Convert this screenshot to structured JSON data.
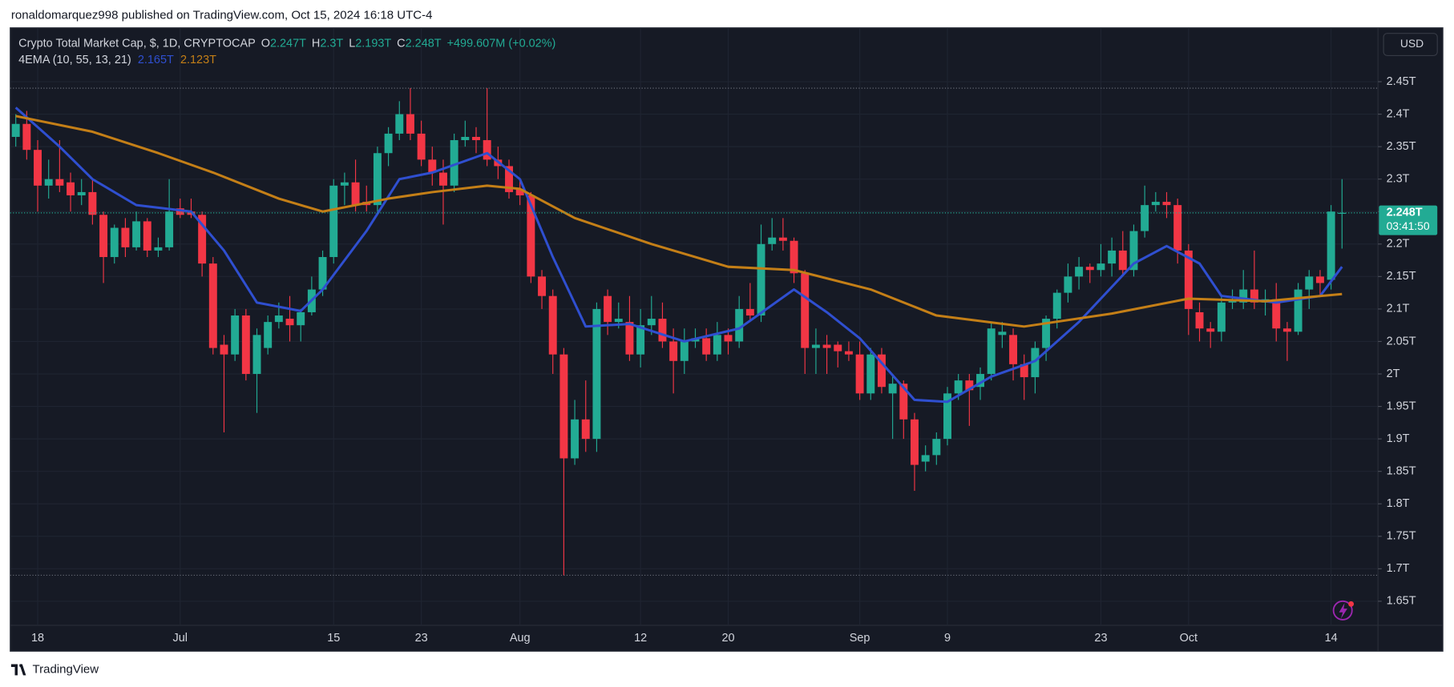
{
  "header": {
    "text": "ronaldomarquez998 published on TradingView.com, Oct 15, 2024 16:18 UTC-4"
  },
  "chart_data": {
    "type": "candlestick",
    "title": "Crypto Total Market Cap, $, 1D, CRYPTOCAP",
    "ohlc_legend": [
      {
        "key": "O",
        "label": "2.247T"
      },
      {
        "key": "H",
        "label": "2.3T"
      },
      {
        "key": "L",
        "label": "2.193T"
      },
      {
        "key": "C",
        "label": "2.248T"
      }
    ],
    "change": "+499.607M (+0.02%)",
    "indicator": {
      "name": "4EMA (10, 55, 13, 21)",
      "values": [
        {
          "value": 2.165,
          "label": "2.165T"
        },
        {
          "value": 2.123,
          "label": "2.123T"
        }
      ]
    },
    "currency": "USD",
    "categories": [
      "Jun 16",
      "Jun 17",
      "Jun 18",
      "Jun 19",
      "Jun 20",
      "Jun 21",
      "Jun 22",
      "Jun 23",
      "Jun 24",
      "Jun 25",
      "Jun 26",
      "Jun 27",
      "Jun 28",
      "Jun 29",
      "Jun 30",
      "Jul 1",
      "Jul 2",
      "Jul 3",
      "Jul 4",
      "Jul 5",
      "Jul 6",
      "Jul 7",
      "Jul 8",
      "Jul 9",
      "Jul 10",
      "Jul 11",
      "Jul 12",
      "Jul 13",
      "Jul 14",
      "Jul 15",
      "Jul 16",
      "Jul 17",
      "Jul 18",
      "Jul 19",
      "Jul 20",
      "Jul 21",
      "Jul 22",
      "Jul 23",
      "Jul 24",
      "Jul 25",
      "Jul 26",
      "Jul 27",
      "Jul 28",
      "Jul 29",
      "Jul 30",
      "Jul 31",
      "Aug 1",
      "Aug 2",
      "Aug 3",
      "Aug 4",
      "Aug 5",
      "Aug 6",
      "Aug 7",
      "Aug 8",
      "Aug 9",
      "Aug 10",
      "Aug 11",
      "Aug 12",
      "Aug 13",
      "Aug 14",
      "Aug 15",
      "Aug 16",
      "Aug 17",
      "Aug 18",
      "Aug 19",
      "Aug 20",
      "Aug 21",
      "Aug 22",
      "Aug 23",
      "Aug 24",
      "Aug 25",
      "Aug 26",
      "Aug 27",
      "Aug 28",
      "Aug 29",
      "Aug 30",
      "Aug 31",
      "Sep 1",
      "Sep 2",
      "Sep 3",
      "Sep 4",
      "Sep 5",
      "Sep 6",
      "Sep 7",
      "Sep 8",
      "Sep 9",
      "Sep 10",
      "Sep 11",
      "Sep 12",
      "Sep 13",
      "Sep 14",
      "Sep 15",
      "Sep 16",
      "Sep 17",
      "Sep 18",
      "Sep 19",
      "Sep 20",
      "Sep 21",
      "Sep 22",
      "Sep 23",
      "Sep 24",
      "Sep 25",
      "Sep 26",
      "Sep 27",
      "Sep 28",
      "Sep 29",
      "Sep 30",
      "Oct 1",
      "Oct 2",
      "Oct 3",
      "Oct 4",
      "Oct 5",
      "Oct 6",
      "Oct 7",
      "Oct 8",
      "Oct 9",
      "Oct 10",
      "Oct 11",
      "Oct 12",
      "Oct 13",
      "Oct 14",
      "Oct 15"
    ],
    "open": [
      2.365,
      2.385,
      2.345,
      2.29,
      2.3,
      2.295,
      2.275,
      2.28,
      2.245,
      2.18,
      2.225,
      2.195,
      2.235,
      2.19,
      2.195,
      2.255,
      2.25,
      2.245,
      2.17,
      2.045,
      2.03,
      2.09,
      2.0,
      2.04,
      2.08,
      2.085,
      2.075,
      2.095,
      2.13,
      2.18,
      2.29,
      2.295,
      2.265,
      2.26,
      2.34,
      2.37,
      2.4,
      2.37,
      2.33,
      2.31,
      2.29,
      2.36,
      2.365,
      2.36,
      2.33,
      2.32,
      2.285,
      2.275,
      2.15,
      2.12,
      2.03,
      1.87,
      1.93,
      1.9,
      2.12,
      2.08,
      2.08,
      2.03,
      2.075,
      2.085,
      2.05,
      2.02,
      2.05,
      2.055,
      2.03,
      2.06,
      2.05,
      2.1,
      2.09,
      2.2,
      2.21,
      2.205,
      2.155,
      2.04,
      2.045,
      2.045,
      2.035,
      2.03,
      1.97,
      2.03,
      1.97,
      1.985,
      1.93,
      1.865,
      1.875,
      1.9,
      1.97,
      1.99,
      1.98,
      2.0,
      2.06,
      2.06,
      2.015,
      1.995,
      2.04,
      2.085,
      2.125,
      2.15,
      2.165,
      2.16,
      2.17,
      2.19,
      2.16,
      2.22,
      2.26,
      2.265,
      2.26,
      2.19,
      2.095,
      2.07,
      2.065,
      2.11,
      2.11,
      2.13,
      2.11,
      2.115,
      2.07,
      2.065,
      2.13,
      2.15,
      2.145,
      2.247
    ],
    "high": [
      2.4,
      2.405,
      2.36,
      2.33,
      2.36,
      2.31,
      2.3,
      2.3,
      2.25,
      2.23,
      2.24,
      2.25,
      2.24,
      2.21,
      2.3,
      2.27,
      2.27,
      2.25,
      2.18,
      2.06,
      2.1,
      2.1,
      2.07,
      2.09,
      2.11,
      2.12,
      2.1,
      2.15,
      2.19,
      2.3,
      2.31,
      2.33,
      2.29,
      2.35,
      2.38,
      2.42,
      2.44,
      2.39,
      2.35,
      2.33,
      2.37,
      2.39,
      2.38,
      2.44,
      2.35,
      2.33,
      2.3,
      2.28,
      2.16,
      2.13,
      2.04,
      1.96,
      1.99,
      2.11,
      2.13,
      2.11,
      2.12,
      2.1,
      2.12,
      2.11,
      2.07,
      2.07,
      2.07,
      2.07,
      2.08,
      2.07,
      2.12,
      2.14,
      2.23,
      2.24,
      2.24,
      2.21,
      2.16,
      2.07,
      2.06,
      2.05,
      2.05,
      2.05,
      2.04,
      2.04,
      2.0,
      1.99,
      1.94,
      1.89,
      1.91,
      1.98,
      2.0,
      2.0,
      2.01,
      2.08,
      2.08,
      2.07,
      2.03,
      2.05,
      2.09,
      2.13,
      2.17,
      2.18,
      2.17,
      2.2,
      2.21,
      2.22,
      2.23,
      2.29,
      2.28,
      2.28,
      2.27,
      2.2,
      2.11,
      2.08,
      2.12,
      2.13,
      2.16,
      2.19,
      2.13,
      2.14,
      2.08,
      2.14,
      2.16,
      2.16,
      2.26,
      2.3
    ],
    "low": [
      2.35,
      2.33,
      2.25,
      2.27,
      2.28,
      2.25,
      2.26,
      2.23,
      2.14,
      2.17,
      2.18,
      2.19,
      2.18,
      2.18,
      2.19,
      2.24,
      2.24,
      2.15,
      2.03,
      1.91,
      2.02,
      1.99,
      1.94,
      2.03,
      2.07,
      2.05,
      2.05,
      2.09,
      2.12,
      2.17,
      2.26,
      2.25,
      2.25,
      2.25,
      2.32,
      2.36,
      2.36,
      2.32,
      2.29,
      2.23,
      2.28,
      2.35,
      2.34,
      2.32,
      2.3,
      2.27,
      2.26,
      2.14,
      2.1,
      2.0,
      1.69,
      1.86,
      1.88,
      1.88,
      2.06,
      2.07,
      2.02,
      2.01,
      2.06,
      2.04,
      1.97,
      2.0,
      2.04,
      2.02,
      2.02,
      2.03,
      2.04,
      2.08,
      2.08,
      2.19,
      2.19,
      2.14,
      2.0,
      2.0,
      2.0,
      2.01,
      2.02,
      1.96,
      1.96,
      1.97,
      1.9,
      1.9,
      1.82,
      1.85,
      1.86,
      1.89,
      1.96,
      1.92,
      1.96,
      1.99,
      2.04,
      1.99,
      1.96,
      1.97,
      2.02,
      2.07,
      2.11,
      2.13,
      2.14,
      2.15,
      2.15,
      2.15,
      2.15,
      2.21,
      2.25,
      2.24,
      2.17,
      2.06,
      2.05,
      2.04,
      2.05,
      2.1,
      2.1,
      2.1,
      2.09,
      2.05,
      2.02,
      2.06,
      2.1,
      2.12,
      2.13,
      2.193
    ],
    "close": [
      2.385,
      2.345,
      2.29,
      2.3,
      2.29,
      2.275,
      2.28,
      2.245,
      2.18,
      2.225,
      2.195,
      2.235,
      2.19,
      2.195,
      2.25,
      2.245,
      2.245,
      2.17,
      2.04,
      2.03,
      2.09,
      2.0,
      2.06,
      2.08,
      2.09,
      2.075,
      2.095,
      2.13,
      2.18,
      2.29,
      2.295,
      2.26,
      2.26,
      2.34,
      2.37,
      2.4,
      2.37,
      2.33,
      2.31,
      2.29,
      2.36,
      2.365,
      2.36,
      2.33,
      2.32,
      2.28,
      2.275,
      2.15,
      2.12,
      2.03,
      1.87,
      1.93,
      1.9,
      2.1,
      2.08,
      2.085,
      2.03,
      2.075,
      2.085,
      2.05,
      2.02,
      2.05,
      2.055,
      2.03,
      2.06,
      2.05,
      2.1,
      2.09,
      2.2,
      2.21,
      2.205,
      2.155,
      2.04,
      2.045,
      2.04,
      2.035,
      2.03,
      1.97,
      2.03,
      1.98,
      1.985,
      1.93,
      1.86,
      1.875,
      1.9,
      1.97,
      1.99,
      1.975,
      2.0,
      2.07,
      2.065,
      2.015,
      1.995,
      2.04,
      2.085,
      2.125,
      2.15,
      2.165,
      2.16,
      2.17,
      2.19,
      2.16,
      2.22,
      2.26,
      2.265,
      2.26,
      2.19,
      2.1,
      2.07,
      2.065,
      2.11,
      2.115,
      2.13,
      2.11,
      2.115,
      2.07,
      2.065,
      2.13,
      2.15,
      2.14,
      2.25,
      2.248
    ],
    "up_color": "#22ab94",
    "down_color": "#f23645",
    "series": [
      {
        "color": "#2f4fd0",
        "x": [
          "Jun 16",
          "Jun 20",
          "Jun 23",
          "Jun 27",
          "Jul 2",
          "Jul 5",
          "Jul 8",
          "Jul 12",
          "Jul 14",
          "Jul 18",
          "Jul 21",
          "Jul 24",
          "Jul 29",
          "Aug 1",
          "Aug 4",
          "Aug 7",
          "Aug 11",
          "Aug 16",
          "Aug 21",
          "Aug 26",
          "Aug 29",
          "Sep 1",
          "Sep 6",
          "Sep 9",
          "Sep 13",
          "Sep 17",
          "Sep 21",
          "Sep 26",
          "Sep 29",
          "Oct 2",
          "Oct 4",
          "Oct 9",
          "Oct 13",
          "Oct 15"
        ],
        "values": [
          2.41,
          2.35,
          2.3,
          2.26,
          2.25,
          2.19,
          2.11,
          2.097,
          2.13,
          2.22,
          2.3,
          2.31,
          2.34,
          2.3,
          2.18,
          2.073,
          2.077,
          2.05,
          2.07,
          2.13,
          2.095,
          2.055,
          1.96,
          1.957,
          1.996,
          2.02,
          2.08,
          2.17,
          2.197,
          2.17,
          2.12,
          2.11,
          2.12,
          2.165
        ]
      },
      {
        "color": "#c47f17",
        "x": [
          "Jun 16",
          "Jun 23",
          "Jun 29",
          "Jul 4",
          "Jul 10",
          "Jul 14",
          "Jul 20",
          "Jul 24",
          "Jul 29",
          "Aug 1",
          "Aug 6",
          "Aug 13",
          "Aug 20",
          "Aug 26",
          "Sep 2",
          "Sep 8",
          "Sep 16",
          "Sep 24",
          "Oct 1",
          "Oct 8",
          "Oct 15"
        ],
        "values": [
          2.397,
          2.373,
          2.34,
          2.31,
          2.27,
          2.25,
          2.27,
          2.28,
          2.29,
          2.285,
          2.24,
          2.2,
          2.165,
          2.16,
          2.13,
          2.09,
          2.073,
          2.093,
          2.116,
          2.112,
          2.123
        ]
      }
    ],
    "price_label": {
      "value": 2.248,
      "label": "2.248T",
      "countdown": "03:41:50"
    },
    "ylim": [
      1.613,
      2.533
    ],
    "yticks": [
      {
        "value": 1.65,
        "label": "1.65T"
      },
      {
        "value": 1.7,
        "label": "1.7T"
      },
      {
        "value": 1.75,
        "label": "1.75T"
      },
      {
        "value": 1.8,
        "label": "1.8T"
      },
      {
        "value": 1.85,
        "label": "1.85T"
      },
      {
        "value": 1.9,
        "label": "1.9T"
      },
      {
        "value": 1.95,
        "label": "1.95T"
      },
      {
        "value": 2,
        "label": "2T"
      },
      {
        "value": 2.05,
        "label": "2.05T"
      },
      {
        "value": 2.1,
        "label": "2.1T"
      },
      {
        "value": 2.15,
        "label": "2.15T"
      },
      {
        "value": 2.2,
        "label": "2.2T"
      },
      {
        "value": 2.25,
        "label": "2.25T"
      },
      {
        "value": 2.3,
        "label": "2.3T"
      },
      {
        "value": 2.35,
        "label": "2.35T"
      },
      {
        "value": 2.4,
        "label": "2.4T"
      },
      {
        "value": 2.45,
        "label": "2.45T"
      }
    ],
    "xticks": [
      {
        "value": "Jun 18",
        "label": "18"
      },
      {
        "value": "Jul 1",
        "label": "Jul"
      },
      {
        "value": "Jul 15",
        "label": "15"
      },
      {
        "value": "Jul 23",
        "label": "23"
      },
      {
        "value": "Aug 1",
        "label": "Aug"
      },
      {
        "value": "Aug 12",
        "label": "12"
      },
      {
        "value": "Aug 20",
        "label": "20"
      },
      {
        "value": "Sep 1",
        "label": "Sep"
      },
      {
        "value": "Sep 9",
        "label": "9"
      },
      {
        "value": "Sep 23",
        "label": "23"
      },
      {
        "value": "Oct 1",
        "label": "Oct"
      },
      {
        "value": "Oct 14",
        "label": "14"
      }
    ],
    "grid": true
  },
  "footer": {
    "brand": "TradingView"
  }
}
